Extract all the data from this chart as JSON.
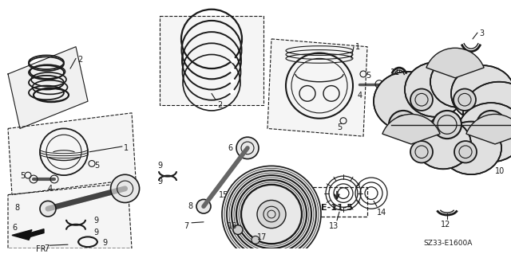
{
  "bg_color": "#ffffff",
  "line_color": "#1a1a1a",
  "text_color": "#1a1a1a",
  "diagram_code": "SZ33-E1600A",
  "ref_label": "E-11-5",
  "label_fontsize": 7,
  "ref_fontsize": 7.5,
  "figsize": [
    6.4,
    3.19
  ],
  "dpi": 100
}
